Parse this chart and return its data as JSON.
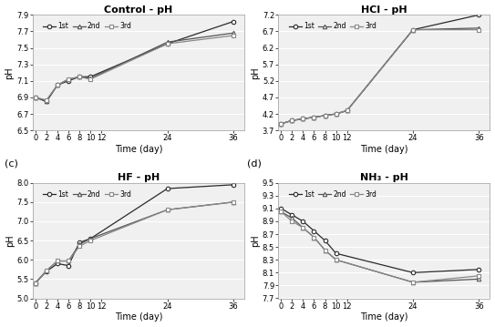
{
  "time": [
    0,
    2,
    4,
    6,
    8,
    10,
    12,
    24,
    36
  ],
  "control": {
    "title": "Control - pH",
    "1st": [
      6.9,
      6.85,
      7.05,
      7.1,
      7.15,
      7.15,
      null,
      7.55,
      7.82
    ],
    "2nd": [
      6.9,
      6.85,
      7.05,
      7.12,
      7.15,
      7.13,
      null,
      7.57,
      7.68
    ],
    "3rd": [
      6.9,
      6.87,
      7.05,
      7.12,
      7.15,
      7.12,
      null,
      7.55,
      7.65
    ],
    "ylim": [
      6.5,
      7.9
    ],
    "yticks": [
      6.5,
      6.7,
      6.9,
      7.1,
      7.3,
      7.5,
      7.7,
      7.9
    ]
  },
  "hcl": {
    "title": "HCl - pH",
    "1st": [
      3.9,
      4.0,
      4.05,
      4.1,
      4.15,
      4.2,
      4.3,
      6.75,
      7.2
    ],
    "2nd": [
      3.9,
      4.0,
      4.05,
      4.1,
      4.15,
      4.2,
      4.3,
      6.75,
      6.8
    ],
    "3rd": [
      3.9,
      4.0,
      4.05,
      4.1,
      4.15,
      4.2,
      4.3,
      6.75,
      6.75
    ],
    "ylim": [
      3.7,
      7.2
    ],
    "yticks": [
      3.7,
      4.2,
      4.7,
      5.2,
      5.7,
      6.2,
      6.7,
      7.2
    ]
  },
  "hf": {
    "title": "HF - pH",
    "1st": [
      5.4,
      5.7,
      5.9,
      5.85,
      6.45,
      6.55,
      null,
      7.85,
      7.95
    ],
    "2nd": [
      5.4,
      5.72,
      5.97,
      5.97,
      6.4,
      6.55,
      null,
      7.3,
      7.5
    ],
    "3rd": [
      5.4,
      5.72,
      5.97,
      5.97,
      6.35,
      6.5,
      null,
      7.3,
      7.5
    ],
    "ylim": [
      5.0,
      8.0
    ],
    "yticks": [
      5.0,
      5.5,
      6.0,
      6.5,
      7.0,
      7.5,
      8.0
    ]
  },
  "nh3": {
    "title": "NH₃ - pH",
    "1st": [
      9.1,
      9.0,
      8.9,
      8.75,
      8.6,
      8.4,
      null,
      8.1,
      8.15
    ],
    "2nd": [
      9.05,
      8.95,
      8.8,
      8.65,
      8.45,
      8.3,
      null,
      7.95,
      8.0
    ],
    "3rd": [
      9.05,
      8.9,
      8.8,
      8.65,
      8.45,
      8.3,
      null,
      7.95,
      8.05
    ],
    "ylim": [
      7.7,
      9.5
    ],
    "yticks": [
      7.7,
      7.9,
      8.1,
      8.3,
      8.5,
      8.7,
      8.9,
      9.1,
      9.3,
      9.5
    ]
  },
  "legend_labels": [
    "1st",
    "2nd",
    "3rd"
  ],
  "markers": [
    "o",
    "^",
    "s"
  ],
  "xlabel": "Time (day)",
  "ylabel": "pH",
  "xticks": [
    0,
    2,
    4,
    6,
    8,
    10,
    12,
    24,
    36
  ],
  "background_color": "#f0f0f0",
  "grid_color": "#ffffff"
}
